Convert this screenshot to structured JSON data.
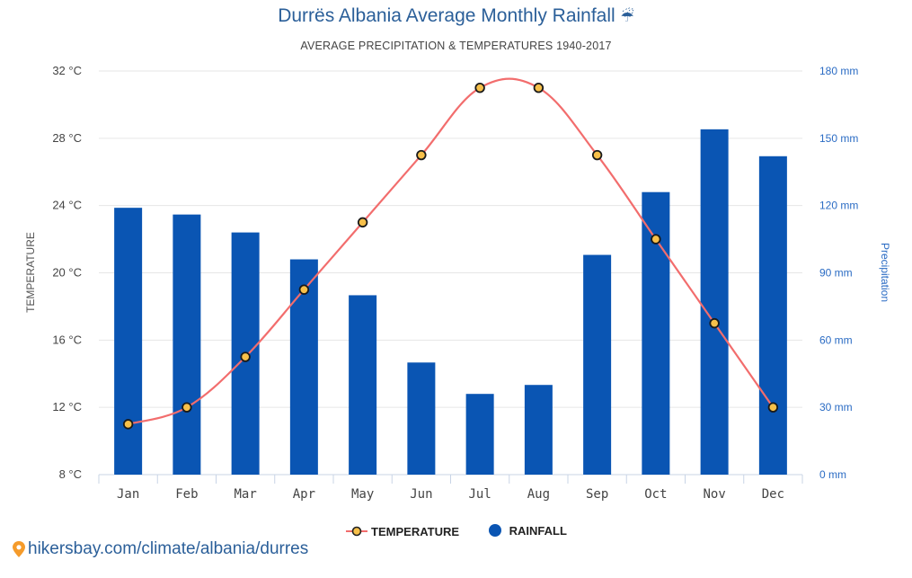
{
  "header": {
    "title": "Durrës Albania Average Monthly Rainfall",
    "title_icon": "umbrella-icon",
    "subtitle": "AVERAGE PRECIPITATION & TEMPERATURES 1940-2017"
  },
  "chart_data": {
    "type": "bar",
    "categories": [
      "Jan",
      "Feb",
      "Mar",
      "Apr",
      "May",
      "Jun",
      "Jul",
      "Aug",
      "Sep",
      "Oct",
      "Nov",
      "Dec"
    ],
    "series": [
      {
        "name": "RAINFALL",
        "type": "bar",
        "axis": "right",
        "color": "#0a55b3",
        "values": [
          119,
          116,
          108,
          96,
          80,
          50,
          36,
          40,
          98,
          126,
          154,
          142
        ]
      },
      {
        "name": "TEMPERATURE",
        "type": "line",
        "axis": "left",
        "color": "#f26d6d",
        "values": [
          11,
          12,
          15,
          19,
          23,
          27,
          31,
          31,
          27,
          22,
          17,
          12
        ]
      }
    ],
    "left_axis": {
      "label": "TEMPERATURE",
      "ylim": [
        8,
        32
      ],
      "ticks": [
        8,
        12,
        16,
        20,
        24,
        28,
        32
      ],
      "tick_labels": [
        "8 °C",
        "12 °C",
        "16 °C",
        "20 °C",
        "24 °C",
        "28 °C",
        "32 °C"
      ]
    },
    "right_axis": {
      "label": "Precipitation",
      "ylim": [
        0,
        180
      ],
      "ticks": [
        0,
        30,
        60,
        90,
        120,
        150,
        180
      ],
      "tick_labels": [
        "0 mm",
        "30 mm",
        "60 mm",
        "90 mm",
        "120 mm",
        "150 mm",
        "180 mm"
      ]
    },
    "grid": true,
    "legend_position": "bottom-center"
  },
  "legend": {
    "temperature": "TEMPERATURE",
    "rainfall": "RAINFALL"
  },
  "footer": {
    "link": "hikersbay.com/climate/albania/durres",
    "icon": "location-pin-icon"
  }
}
